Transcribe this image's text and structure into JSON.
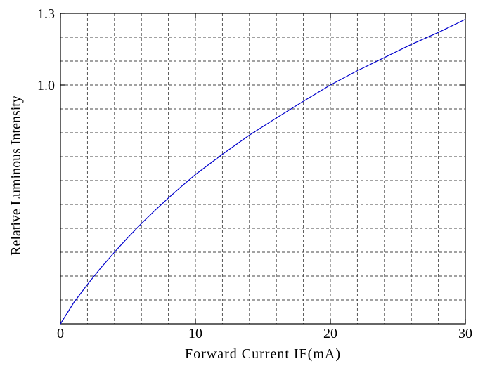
{
  "chart_data": {
    "type": "line",
    "xlabel": "Forward Current IF(mA)",
    "ylabel": "Relative Luminous Intensity",
    "xlim": [
      0,
      30
    ],
    "ylim": [
      0,
      1.3
    ],
    "x_ticks": [
      0,
      10,
      20,
      30
    ],
    "x_tick_labels": [
      "0",
      "10",
      "20",
      "30"
    ],
    "y_ticks": [
      1.0,
      1.3
    ],
    "y_tick_labels": [
      "1.0",
      "1.3"
    ],
    "grid": true,
    "grid_style": "dashed",
    "x_grid_step": 2,
    "y_grid_step": 0.1,
    "line_color": "#0000cc",
    "series": [
      {
        "x": [
          0,
          1,
          2,
          3,
          4,
          5,
          6,
          7,
          8,
          9,
          10,
          12,
          14,
          16,
          18,
          20,
          22,
          24,
          26,
          28,
          30
        ],
        "y": [
          0.0,
          0.09,
          0.165,
          0.235,
          0.3,
          0.362,
          0.42,
          0.475,
          0.527,
          0.577,
          0.625,
          0.71,
          0.79,
          0.862,
          0.932,
          1.0,
          1.06,
          1.115,
          1.17,
          1.22,
          1.275
        ]
      }
    ]
  }
}
